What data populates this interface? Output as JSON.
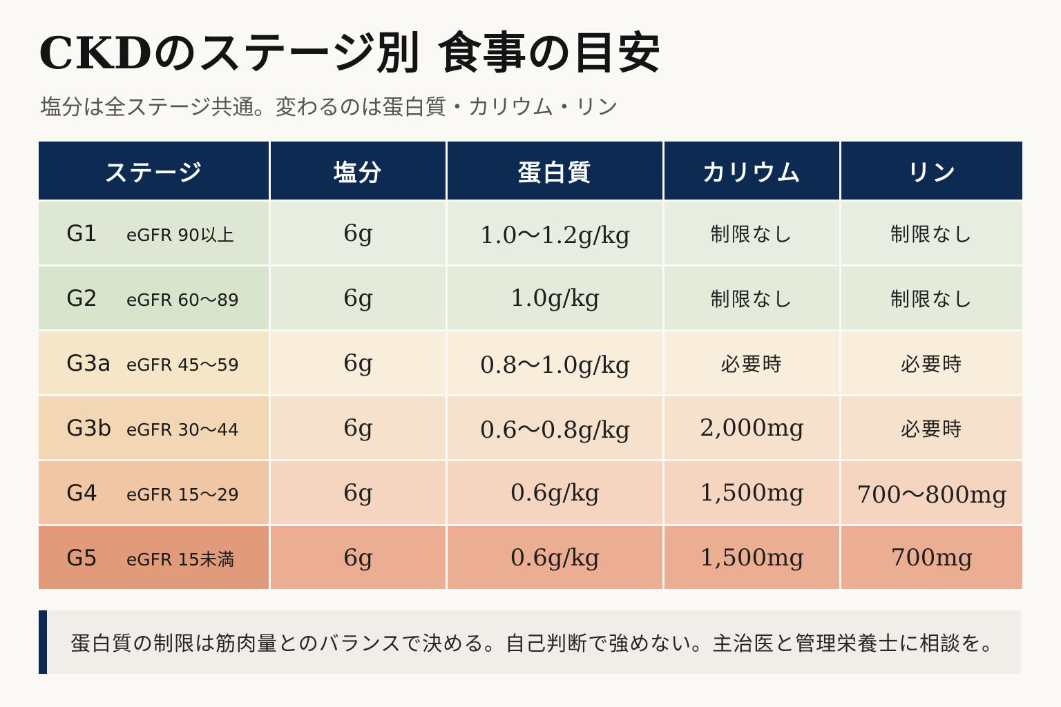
{
  "title": "CKDのステージ別 食事の目安",
  "subtitle": "塩分は全ステージ共通。変わるのは蛋白質・カリウム・リン",
  "table": {
    "headers": [
      "ステージ",
      "塩分",
      "蛋白質",
      "カリウム",
      "リン"
    ],
    "rows": [
      {
        "stage": "G1",
        "egfr": "eGFR 90以上",
        "salt": "6g",
        "protein": "1.0～1.2g/kg",
        "potassium": "制限なし",
        "phosphorus": "制限なし",
        "stage_color": "#dde7d3",
        "cell_color": "#e7eee1"
      },
      {
        "stage": "G2",
        "egfr": "eGFR 60～89",
        "salt": "6g",
        "protein": "1.0g/kg",
        "potassium": "制限なし",
        "phosphorus": "制限なし",
        "stage_color": "#d9e4cd",
        "cell_color": "#e4ebdb"
      },
      {
        "stage": "G3a",
        "egfr": "eGFR 45～59",
        "salt": "6g",
        "protein": "0.8～1.0g/kg",
        "potassium": "必要時",
        "phosphorus": "必要時",
        "stage_color": "#f5e6c8",
        "cell_color": "#f8eedb"
      },
      {
        "stage": "G3b",
        "egfr": "eGFR 30～44",
        "salt": "6g",
        "protein": "0.6～0.8g/kg",
        "potassium": "2,000mg",
        "phosphorus": "必要時",
        "stage_color": "#f3d6b4",
        "cell_color": "#f6e2cc"
      },
      {
        "stage": "G4",
        "egfr": "eGFR 15～29",
        "salt": "6g",
        "protein": "0.6g/kg",
        "potassium": "1,500mg",
        "phosphorus": "700～800mg",
        "stage_color": "#f0c6a4",
        "cell_color": "#f5d5bf"
      },
      {
        "stage": "G5",
        "egfr": "eGFR 15未満",
        "salt": "6g",
        "protein": "0.6g/kg",
        "potassium": "1,500mg",
        "phosphorus": "700mg",
        "stage_color": "#e19a7a",
        "cell_color": "#ecae93"
      }
    ]
  },
  "note": "蛋白質の制限は筋肉量とのバランスで決める。自己判断で強めない。主治医と管理栄養士に相談を。",
  "colors": {
    "header_bg": "#0c2a52",
    "accent_bar": "#0c2a52",
    "note_bg": "#f1eeea",
    "page_bg": "#fbf9f5"
  }
}
